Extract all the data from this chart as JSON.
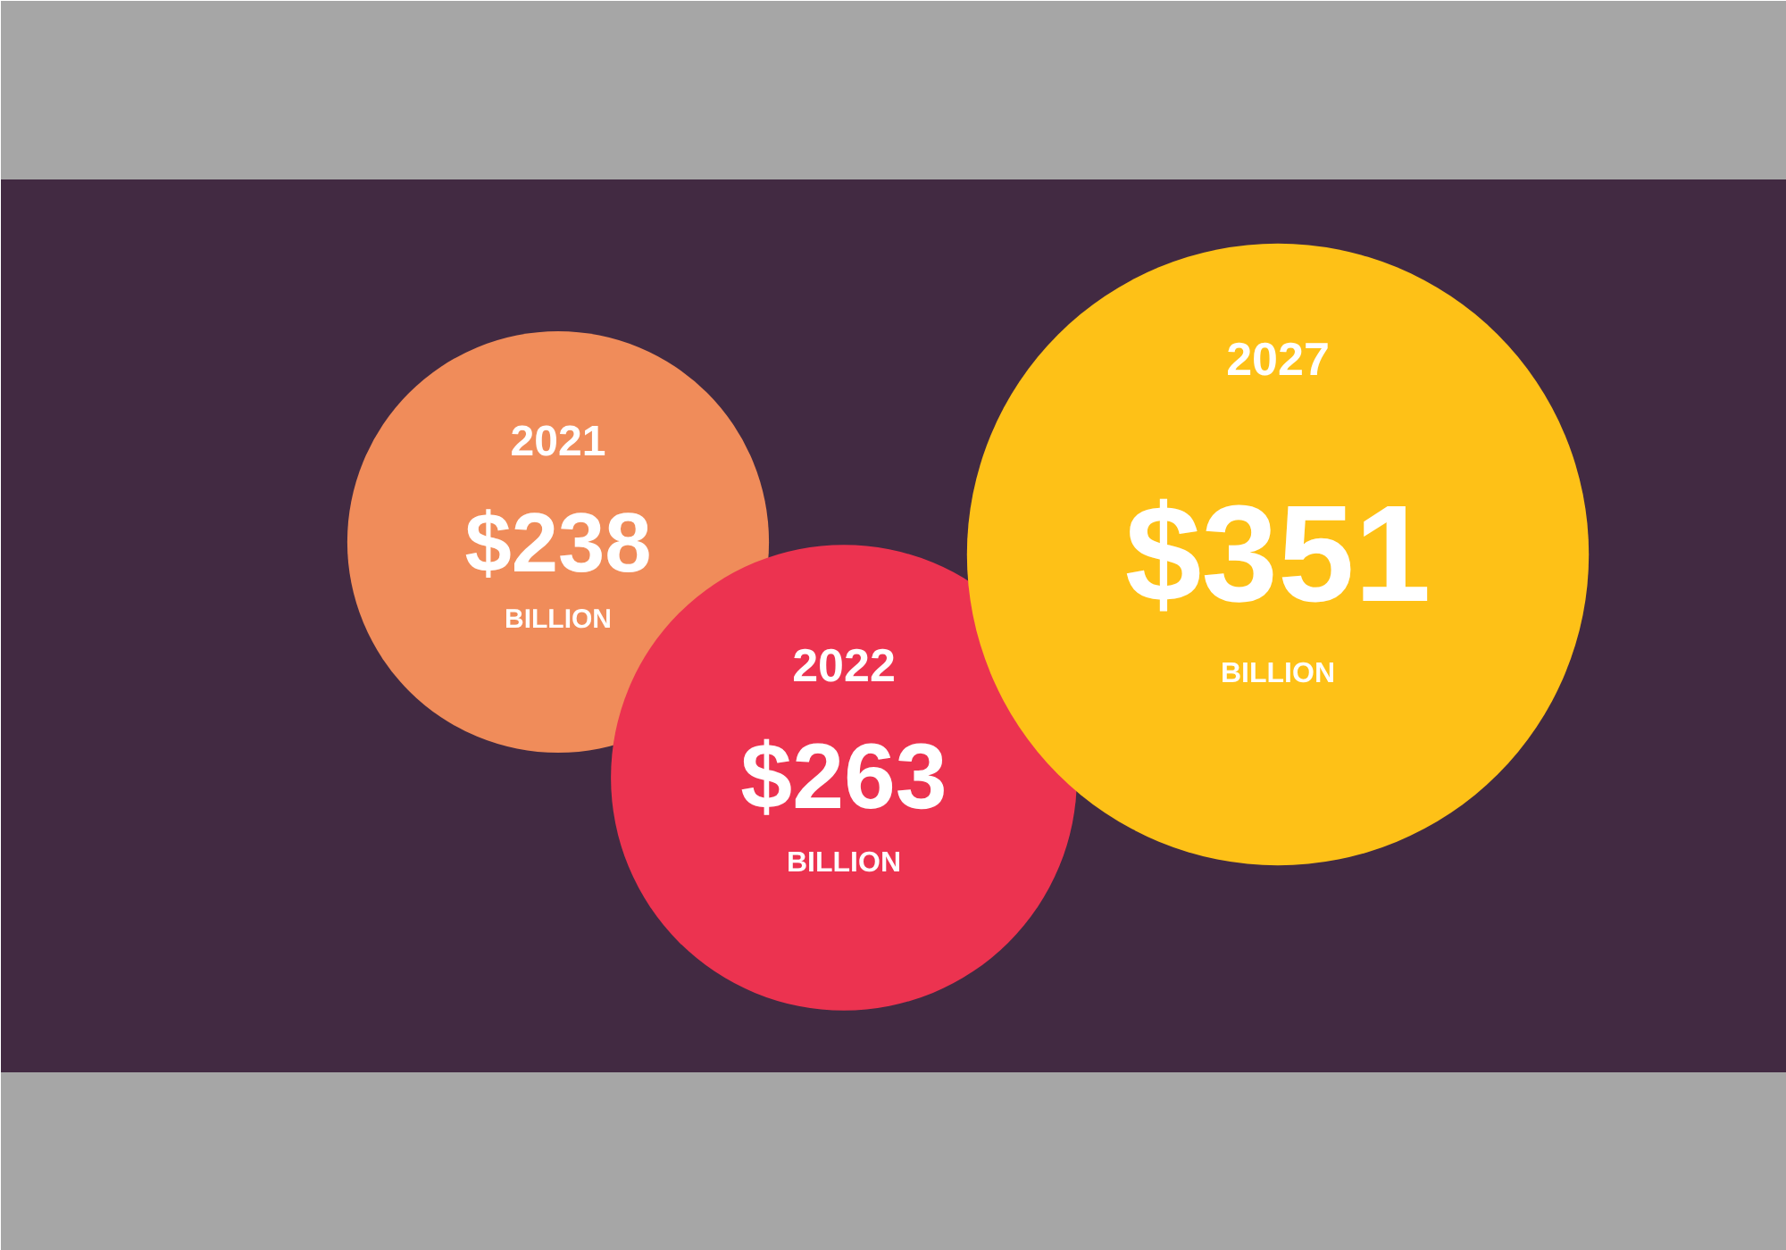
{
  "chart_data": {
    "type": "other",
    "categories": [
      "2021",
      "2022",
      "2027"
    ],
    "values": [
      238,
      263,
      351
    ],
    "value_labels": [
      "$238",
      "$263",
      "$351"
    ],
    "colors": [
      "#f08c5a",
      "#ec3350",
      "#fec117"
    ],
    "annotations": [
      "BILLION",
      "BILLION",
      "BILLION"
    ]
  }
}
